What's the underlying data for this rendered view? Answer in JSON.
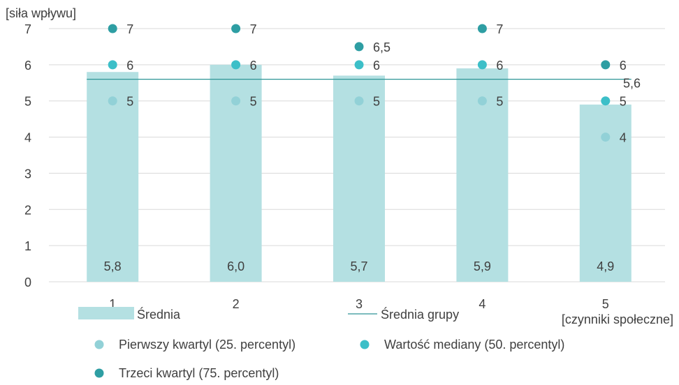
{
  "chart_data": {
    "type": "bar",
    "ylabel": "[siła wpływu]",
    "xlabel": "[czynniki społeczne]",
    "categories": [
      "1",
      "2",
      "3",
      "4",
      "5"
    ],
    "ylim": [
      0,
      7
    ],
    "yticks": [
      0,
      1,
      2,
      3,
      4,
      5,
      6,
      7
    ],
    "grid": true,
    "series": [
      {
        "name": "Średnia",
        "kind": "bar",
        "color": "#b4e0e2",
        "values": [
          5.8,
          6.0,
          5.7,
          5.9,
          4.9
        ],
        "labels": [
          "5,8",
          "6,0",
          "5,7",
          "5,9",
          "4,9"
        ]
      },
      {
        "name": "Średnia grupy",
        "kind": "line",
        "color": "#2e9596",
        "value": 5.6,
        "label": "5,6"
      },
      {
        "name": "Pierwszy kwartyl (25. percentyl)",
        "kind": "scatter",
        "color": "#92d1d7",
        "values": [
          5,
          5,
          5,
          5,
          4
        ],
        "labels": [
          "5",
          "5",
          "5",
          "5",
          "4"
        ]
      },
      {
        "name": "Wartość mediany (50. percentyl)",
        "kind": "scatter",
        "color": "#3cbfc8",
        "values": [
          6,
          6,
          6,
          6,
          5
        ],
        "labels": [
          "6",
          "6",
          "6",
          "6",
          "5"
        ]
      },
      {
        "name": "Trzeci kwartyl (75. percentyl)",
        "kind": "scatter",
        "color": "#2e9ea3",
        "values": [
          7,
          7,
          6.5,
          7,
          6
        ],
        "labels": [
          "7",
          "7",
          "6,5",
          "7",
          "6"
        ]
      }
    ],
    "legend": "bottom"
  }
}
